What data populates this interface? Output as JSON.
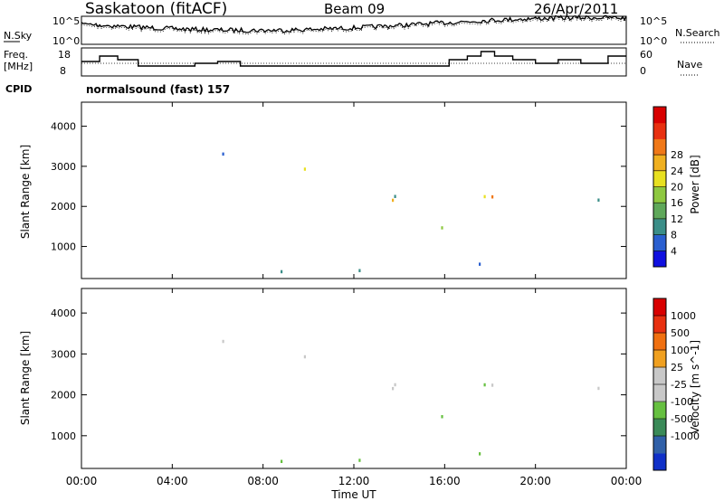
{
  "header": {
    "station": "Saskatoon (fitACF)",
    "beam": "Beam 09",
    "date": "26/Apr/2011"
  },
  "noise_panel": {
    "left_label": "N.Sky",
    "right_label": "N.Search",
    "left_ticks": [
      "10^5",
      "10^0"
    ],
    "right_ticks": [
      "10^5",
      "10^0"
    ],
    "right_line_style": "dotted"
  },
  "freq_panel": {
    "left_label": [
      "Freq.",
      "[MHz]"
    ],
    "right_label": "Nave",
    "left_ticks": [
      "18",
      "8"
    ],
    "right_ticks": [
      "60",
      "0"
    ],
    "right_line_style": "dotted"
  },
  "cpid": {
    "label": "CPID",
    "value": "normalsound (fast) 157"
  },
  "chart_data": [
    {
      "type": "heatmap",
      "name": "power",
      "ylabel": "Slant Range [km]",
      "ylim": [
        200,
        4600
      ],
      "yticks": [
        "1000",
        "2000",
        "3000",
        "4000"
      ],
      "colorbar": {
        "label": "Power [dB]",
        "ticks": [
          "4",
          "8",
          "12",
          "16",
          "20",
          "24",
          "28"
        ],
        "colors": [
          "#1010e0",
          "#2a5fd0",
          "#3b8e88",
          "#5fa85a",
          "#8ec840",
          "#e8e020",
          "#f0b020",
          "#f07818",
          "#e83010",
          "#d80000"
        ]
      }
    },
    {
      "type": "heatmap",
      "name": "velocity",
      "ylabel": "Slant Range [km]",
      "ylim": [
        200,
        4600
      ],
      "yticks": [
        "1000",
        "2000",
        "3000",
        "4000"
      ],
      "colorbar": {
        "label": "Velocity [m s^-1]",
        "ticks": [
          "1000",
          "500",
          "100",
          "25",
          "-25",
          "-100",
          "-500",
          "-1000"
        ],
        "colors": [
          "#1030c8",
          "#3060a8",
          "#3a8a58",
          "#66c040",
          "#c8c8c8",
          "#c8c8c8",
          "#f0a020",
          "#f07010",
          "#e83010",
          "#d80000"
        ]
      }
    }
  ],
  "x_axis": {
    "label": "Time UT",
    "ticks": [
      "00:00",
      "04:00",
      "08:00",
      "12:00",
      "16:00",
      "20:00",
      "00:00"
    ]
  }
}
